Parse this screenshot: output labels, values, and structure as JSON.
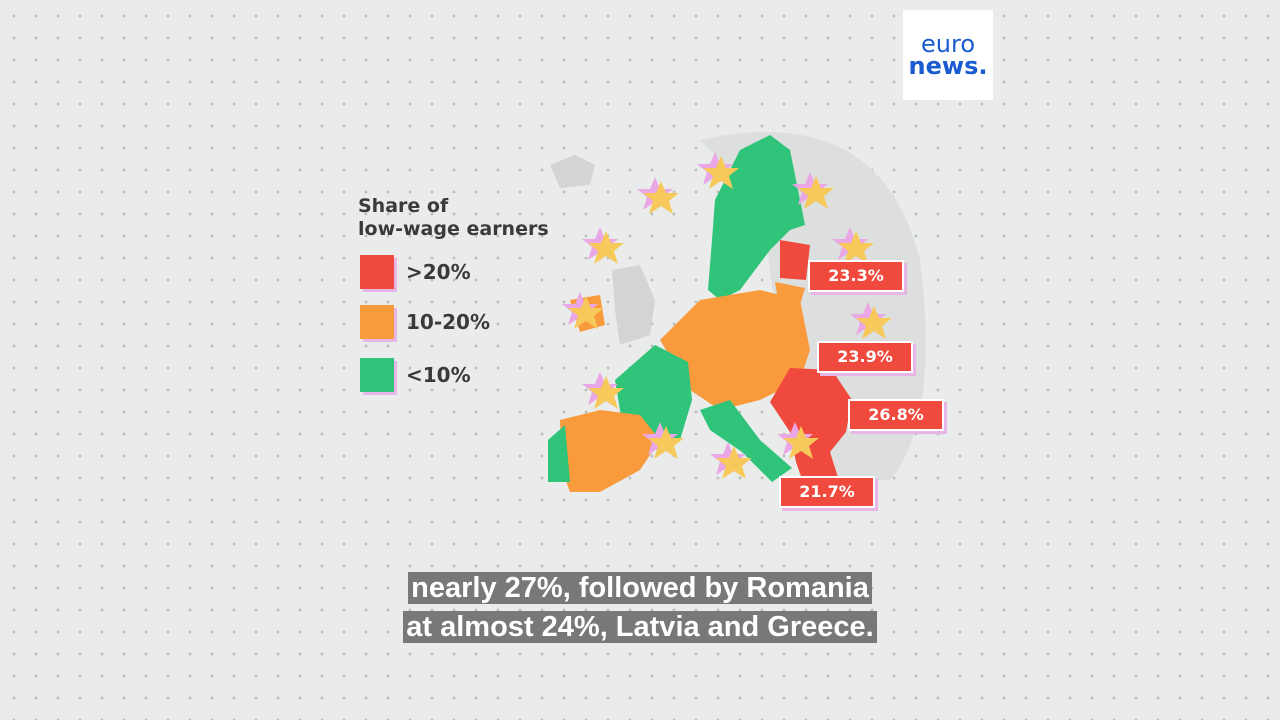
{
  "logo": {
    "line1": "euro",
    "line2": "news."
  },
  "legend": {
    "title": [
      "Share of",
      "low-wage earners"
    ],
    "items": [
      {
        "label": ">20%",
        "color": "#f04a3e"
      },
      {
        "label": "10-20%",
        "color": "#f99a3d"
      },
      {
        "label": "<10%",
        "color": "#2fc47a"
      }
    ]
  },
  "map_labels": [
    "23.3%",
    "23.9%",
    "26.8%",
    "21.7%"
  ],
  "subtitle": [
    "nearly 27%, followed by Romania",
    "at almost 24%, Latvia and Greece."
  ]
}
